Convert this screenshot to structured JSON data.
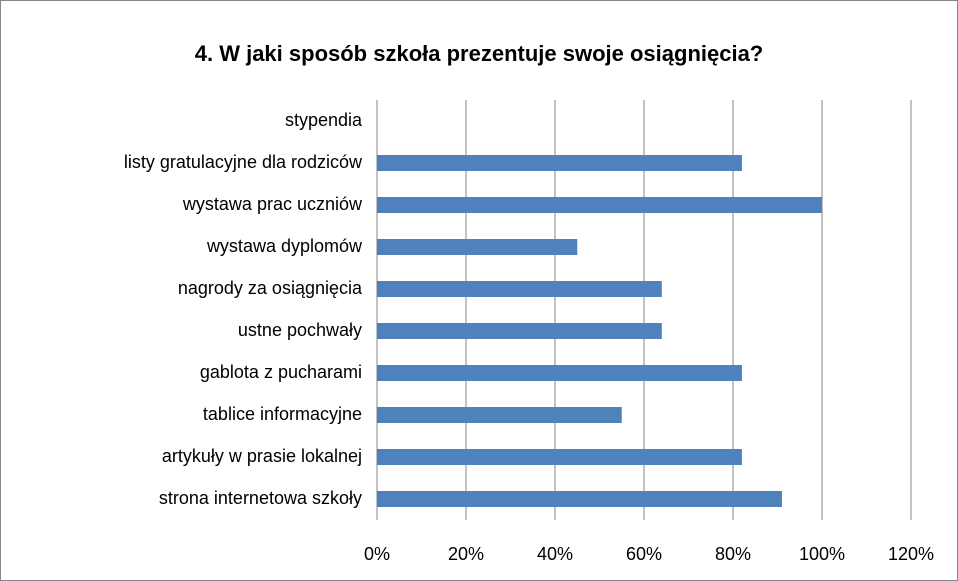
{
  "chart_data": {
    "type": "bar",
    "orientation": "horizontal",
    "title": "4. W jaki sposób szkoła prezentuje swoje osiągnięcia?",
    "categories": [
      "strona internetowa szkoły",
      "artykuły w prasie lokalnej",
      "tablice informacyjne",
      "gablota z pucharami",
      "ustne pochwały",
      "nagrody za osiągnięcia",
      "wystawa dyplomów",
      "wystawa prac uczniów",
      "listy gratulacyjne dla rodziców",
      "stypendia"
    ],
    "values": [
      91,
      82,
      55,
      82,
      64,
      64,
      45,
      100,
      82,
      0
    ],
    "color": "#4f81bd",
    "xlim": [
      0,
      120
    ],
    "xticks": [
      {
        "value": 0,
        "label": "0%"
      },
      {
        "value": 20,
        "label": "20%"
      },
      {
        "value": 40,
        "label": "40%"
      },
      {
        "value": 60,
        "label": "60%"
      },
      {
        "value": 80,
        "label": "80%"
      },
      {
        "value": 100,
        "label": "100%"
      },
      {
        "value": 120,
        "label": "120%"
      }
    ],
    "grid": true
  }
}
